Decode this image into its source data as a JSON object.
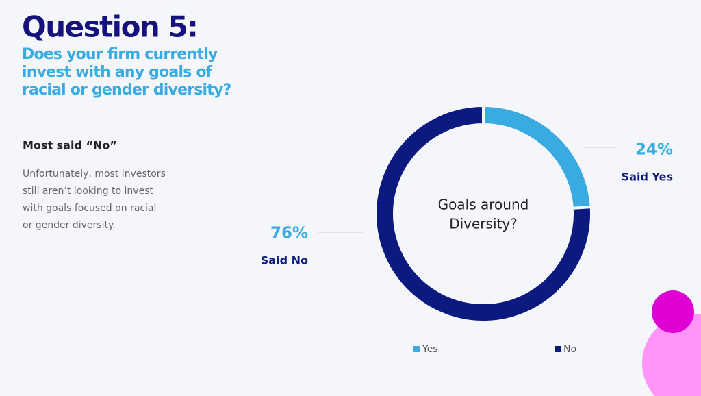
{
  "chart_data": {
    "type": "pie",
    "donut": true,
    "title": "Question 5:",
    "subtitle": [
      "Does your firm currently",
      "invest with any goals of",
      "racial or gender diversity?"
    ],
    "heading": "Most said “No”",
    "body": [
      "Unfortunately, most investors",
      "still aren’t looking to invest",
      "with goals focused on racial",
      "or gender diversity."
    ],
    "center_label": [
      "Goals around",
      "Diversity?"
    ],
    "categories": [
      "Yes",
      "No"
    ],
    "values": [
      24,
      76
    ],
    "value_labels": [
      "24%",
      "76%"
    ],
    "slice_labels": [
      "Said Yes",
      "Said No"
    ],
    "colors": [
      "#3aabe1",
      "#0c1a80"
    ],
    "legend": "bottom"
  }
}
